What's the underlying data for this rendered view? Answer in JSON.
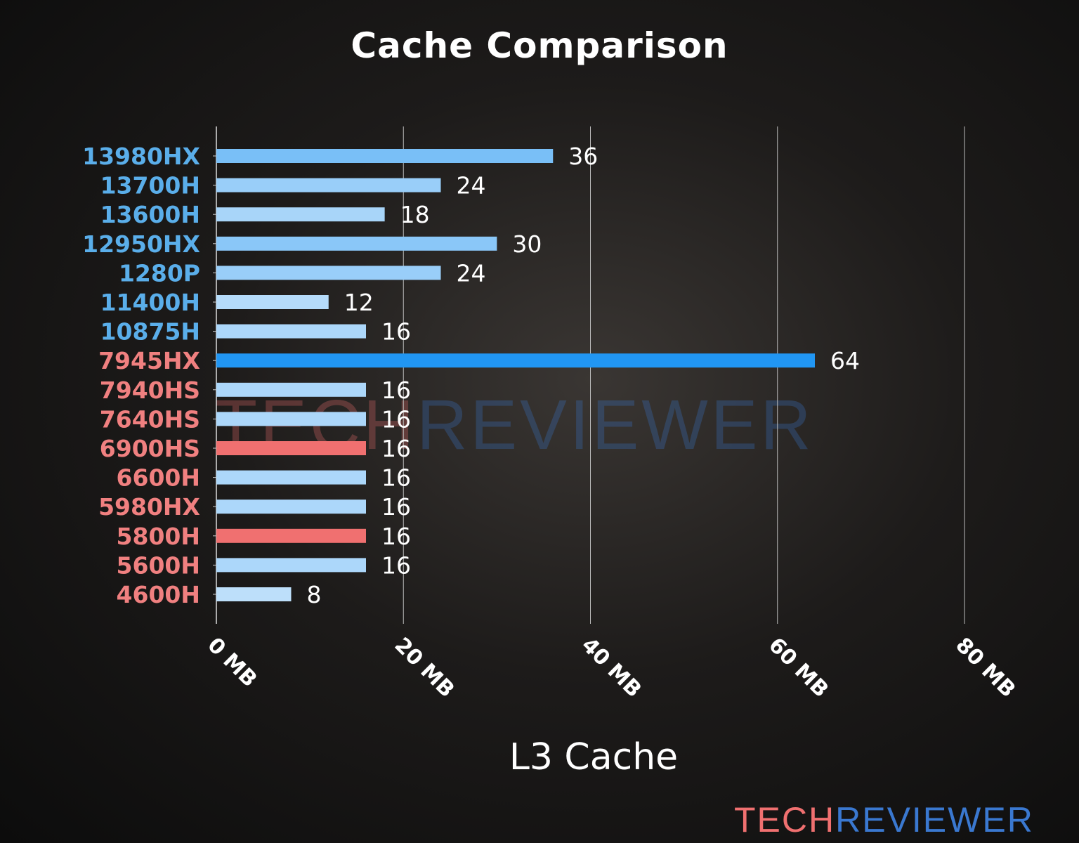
{
  "chart_data": {
    "type": "bar",
    "orientation": "horizontal",
    "title": "Cache Comparison",
    "xlabel": "L3 Cache",
    "ylabel": "",
    "xlim": [
      0,
      80
    ],
    "xticks": [
      0,
      20,
      40,
      60,
      80
    ],
    "xtick_labels": [
      "0 MB",
      "20 MB",
      "40 MB",
      "60 MB",
      "80 MB"
    ],
    "grid": "vertical",
    "categories": [
      "13980HX",
      "13700H",
      "13600H",
      "12950HX",
      "1280P",
      "11400H",
      "10875H",
      "7945HX",
      "7940HS",
      "7640HS",
      "6900HS",
      "6600H",
      "5980HX",
      "5800H",
      "5600H",
      "4600H"
    ],
    "values": [
      36,
      24,
      18,
      30,
      24,
      12,
      16,
      64,
      16,
      16,
      16,
      16,
      16,
      16,
      16,
      8
    ],
    "label_colors": [
      "#5aaeea",
      "#5aaeea",
      "#5aaeea",
      "#5aaeea",
      "#5aaeea",
      "#5aaeea",
      "#5aaeea",
      "#f08080",
      "#f08080",
      "#f08080",
      "#f08080",
      "#f08080",
      "#f08080",
      "#f08080",
      "#f08080",
      "#f08080"
    ],
    "highlighted_red": [
      "6900HS",
      "5800H"
    ]
  },
  "colors": {
    "bar_low": "#c8e4fb",
    "bar_high": "#2196f3",
    "bar_red": "#f07070",
    "intel": "#5aaeea",
    "amd": "#f08080"
  },
  "watermark": {
    "part1": "TECH",
    "part2": "REVIEWER"
  },
  "logo": {
    "part1": "TECH",
    "part2": "REVIEWER"
  }
}
